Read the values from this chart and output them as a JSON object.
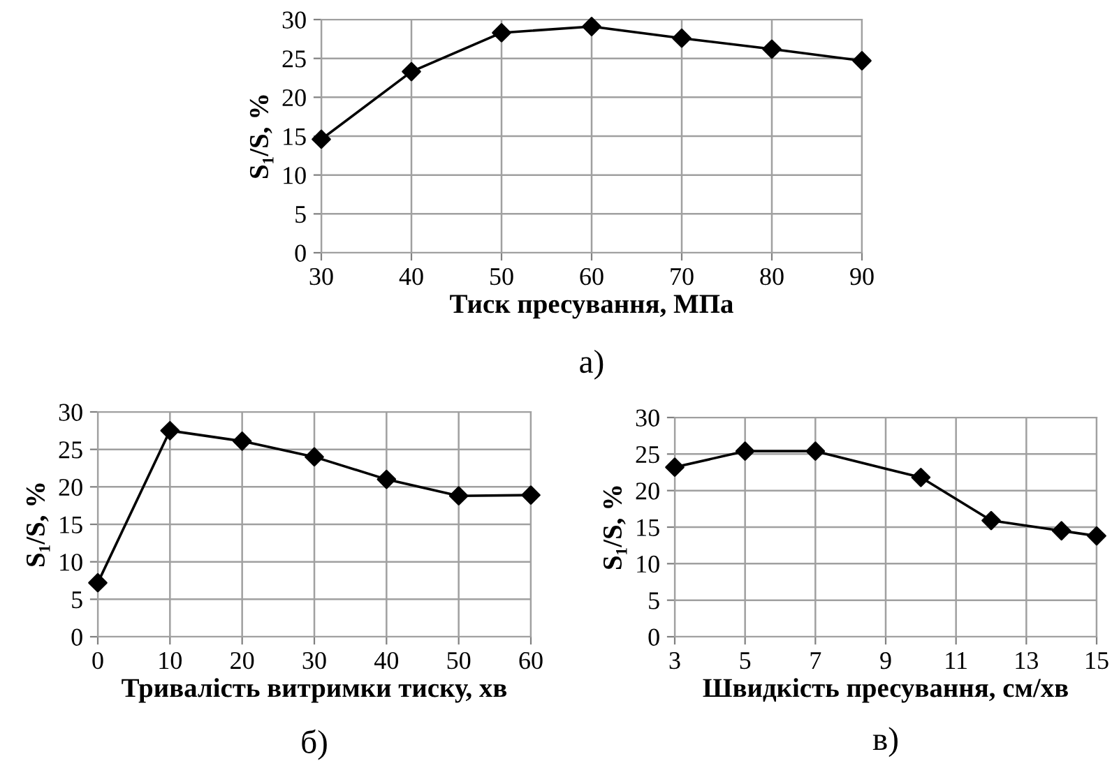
{
  "chart_data": [
    {
      "type": "line",
      "x": [
        30,
        40,
        50,
        60,
        70,
        80,
        90
      ],
      "values": [
        14.6,
        23.3,
        28.3,
        29.1,
        27.6,
        26.2,
        24.7
      ],
      "color": "#000000",
      "marker": "diamond",
      "line_style": "solid",
      "grid": true,
      "xlim": [
        30,
        90
      ],
      "xticks": [
        30,
        40,
        50,
        60,
        70,
        80,
        90
      ],
      "ylim": [
        0,
        30
      ],
      "yticks": [
        0,
        5,
        10,
        15,
        20,
        25,
        30
      ],
      "xlabel": "Тиск пресування, МПа",
      "ylabel": "S₁/S, %",
      "annotations": [
        "а)"
      ]
    },
    {
      "type": "line",
      "x": [
        0,
        10,
        20,
        30,
        40,
        50,
        60
      ],
      "values": [
        7.2,
        27.5,
        26.1,
        24.0,
        21.0,
        18.8,
        18.9
      ],
      "color": "#000000",
      "marker": "diamond",
      "line_style": "solid",
      "grid": true,
      "xlim": [
        0,
        60
      ],
      "xticks": [
        0,
        10,
        20,
        30,
        40,
        50,
        60
      ],
      "ylim": [
        0,
        30
      ],
      "yticks": [
        0,
        5,
        10,
        15,
        20,
        25,
        30
      ],
      "xlabel": "Тривалість витримки тиску, хв",
      "ylabel": "S₁/S, %",
      "annotations": [
        "б)"
      ]
    },
    {
      "type": "line",
      "x": [
        3,
        5,
        7,
        10,
        12,
        14,
        15
      ],
      "values": [
        23.2,
        25.4,
        25.4,
        21.8,
        15.9,
        14.5,
        13.8
      ],
      "color": "#000000",
      "marker": "diamond",
      "line_style": "solid",
      "grid": true,
      "xlim": [
        3,
        15
      ],
      "xticks": [
        3,
        5,
        7,
        9,
        11,
        13,
        15
      ],
      "ylim": [
        0,
        30
      ],
      "yticks": [
        0,
        5,
        10,
        15,
        20,
        25,
        30
      ],
      "xlabel": "Швидкість пресування, см/хв",
      "ylabel": "S₁/S, %",
      "annotations": [
        "в)"
      ]
    }
  ]
}
